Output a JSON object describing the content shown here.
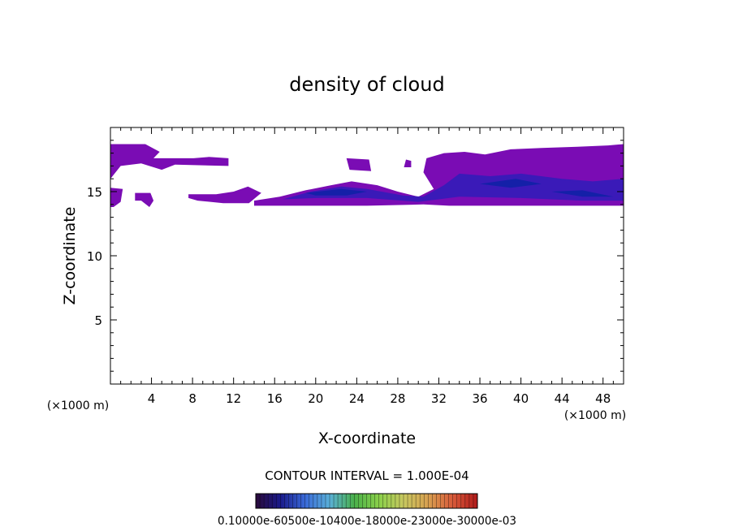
{
  "chart_data": {
    "type": "heatmap",
    "title": "density of cloud",
    "xlabel": "X-coordinate",
    "ylabel": "Z-coordinate",
    "x_unit_label_left": "(×1000 m)",
    "x_unit_label_right": "(×1000 m)",
    "xlim": [
      0,
      50
    ],
    "ylim": [
      0,
      20
    ],
    "x_ticks": [
      4,
      8,
      12,
      16,
      20,
      24,
      28,
      32,
      36,
      40,
      44,
      48
    ],
    "y_ticks": [
      5,
      10,
      15
    ],
    "contour_interval_text": "CONTOUR INTERVAL = 1.000E-04",
    "colorbar_labels_text": "0.10000e-60500e-10400e-18000e-23000e-30000e-03",
    "colorbar_stops": [
      "#2a0a3a",
      "#1a1a8a",
      "#3a6ad8",
      "#5ab0d8",
      "#4ab04a",
      "#8ad04a",
      "#c8c860",
      "#d8a050",
      "#d85a3a",
      "#b01a1a"
    ],
    "fill_colors": {
      "outer": "#7a0cb4",
      "mid": "#3a1ab8",
      "core": "#1420a8"
    },
    "regions": [
      {
        "level": "outer",
        "points": [
          [
            0,
            18.7
          ],
          [
            3.4,
            18.7
          ],
          [
            4.8,
            18.1
          ],
          [
            4.2,
            17.6
          ],
          [
            8.1,
            17.6
          ],
          [
            9.6,
            17.7
          ],
          [
            11.5,
            17.6
          ],
          [
            11.5,
            17.0
          ],
          [
            6.3,
            17.1
          ],
          [
            5.0,
            16.7
          ],
          [
            3.0,
            17.2
          ],
          [
            1.0,
            17.0
          ],
          [
            0,
            16.0
          ]
        ]
      },
      {
        "level": "outer",
        "points": [
          [
            0,
            15.3
          ],
          [
            1.2,
            15.2
          ],
          [
            1.0,
            14.2
          ],
          [
            0.3,
            13.8
          ],
          [
            0,
            13.8
          ]
        ]
      },
      {
        "level": "outer",
        "points": [
          [
            2.4,
            14.9
          ],
          [
            3.9,
            14.9
          ],
          [
            4.2,
            14.3
          ],
          [
            3.8,
            13.8
          ],
          [
            3.0,
            14.3
          ],
          [
            2.4,
            14.3
          ]
        ]
      },
      {
        "level": "outer",
        "points": [
          [
            7.6,
            14.8
          ],
          [
            10.3,
            14.8
          ],
          [
            12.0,
            15.0
          ],
          [
            13.4,
            15.4
          ],
          [
            14.7,
            14.9
          ],
          [
            13.5,
            14.1
          ],
          [
            11.0,
            14.1
          ],
          [
            8.5,
            14.3
          ],
          [
            7.6,
            14.5
          ]
        ]
      },
      {
        "level": "outer",
        "points": [
          [
            23.0,
            17.6
          ],
          [
            25.2,
            17.5
          ],
          [
            25.4,
            16.6
          ],
          [
            23.3,
            16.7
          ]
        ]
      },
      {
        "level": "outer",
        "points": [
          [
            29.3,
            17.4
          ],
          [
            28.8,
            17.5
          ],
          [
            28.6,
            16.9
          ],
          [
            29.3,
            16.9
          ]
        ]
      },
      {
        "level": "outer",
        "points": [
          [
            14.0,
            14.3
          ],
          [
            16.5,
            14.6
          ],
          [
            19.0,
            15.1
          ],
          [
            21.5,
            15.5
          ],
          [
            23.5,
            15.8
          ],
          [
            26.0,
            15.5
          ],
          [
            28.0,
            15.0
          ],
          [
            30.0,
            14.6
          ],
          [
            31.5,
            15.2
          ],
          [
            30.5,
            16.5
          ],
          [
            30.8,
            17.6
          ],
          [
            32.5,
            18.0
          ],
          [
            34.5,
            18.1
          ],
          [
            36.5,
            17.9
          ],
          [
            39.0,
            18.3
          ],
          [
            42.0,
            18.4
          ],
          [
            45.5,
            18.5
          ],
          [
            48.5,
            18.6
          ],
          [
            50,
            18.7
          ],
          [
            50,
            13.9
          ],
          [
            41.0,
            13.9
          ],
          [
            33.0,
            13.9
          ],
          [
            30.5,
            14.0
          ],
          [
            25.0,
            13.9
          ],
          [
            19.0,
            13.9
          ],
          [
            14.0,
            13.9
          ]
        ]
      },
      {
        "level": "mid",
        "points": [
          [
            16.8,
            14.4
          ],
          [
            19.5,
            15.0
          ],
          [
            22.5,
            15.4
          ],
          [
            25.0,
            15.2
          ],
          [
            28.5,
            14.7
          ],
          [
            30.5,
            14.6
          ],
          [
            32.5,
            15.5
          ],
          [
            34.0,
            16.4
          ],
          [
            37.0,
            16.2
          ],
          [
            40.0,
            16.4
          ],
          [
            44.0,
            16.0
          ],
          [
            47.0,
            15.8
          ],
          [
            50,
            16.0
          ],
          [
            50,
            14.3
          ],
          [
            46.0,
            14.3
          ],
          [
            40.0,
            14.5
          ],
          [
            34.0,
            14.6
          ],
          [
            30.0,
            14.2
          ],
          [
            25.0,
            14.5
          ],
          [
            20.0,
            14.5
          ]
        ]
      },
      {
        "level": "core",
        "points": [
          [
            19.0,
            14.9
          ],
          [
            22.5,
            15.2
          ],
          [
            25.0,
            15.0
          ],
          [
            23.0,
            14.7
          ],
          [
            20.0,
            14.7
          ]
        ]
      },
      {
        "level": "core",
        "points": [
          [
            36.0,
            15.6
          ],
          [
            39.5,
            16.0
          ],
          [
            42.0,
            15.6
          ],
          [
            39.0,
            15.3
          ]
        ]
      },
      {
        "level": "core",
        "points": [
          [
            43.0,
            15.0
          ],
          [
            46.0,
            15.1
          ],
          [
            49.0,
            14.6
          ],
          [
            46.0,
            14.6
          ]
        ]
      }
    ]
  }
}
